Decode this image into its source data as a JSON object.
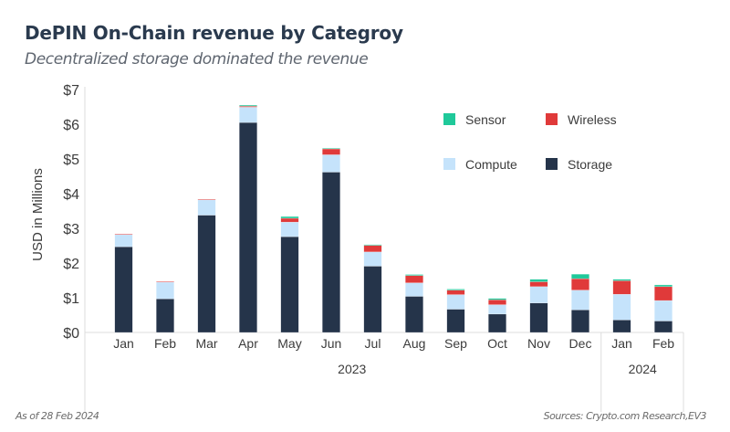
{
  "chart_data": {
    "type": "bar",
    "stacked": true,
    "title": "DePIN On-Chain revenue by Categroy",
    "subtitle": "Decentralized storage dominated the revenue",
    "xlabel": "",
    "ylabel": "USD in Millions",
    "ylim": [
      0,
      7
    ],
    "yticks": [
      "$0",
      "$1",
      "$2",
      "$3",
      "$4",
      "$5",
      "$6",
      "$7"
    ],
    "grid": false,
    "legend_position": "top-right",
    "categories": [
      "Jan",
      "Feb",
      "Mar",
      "Apr",
      "May",
      "Jun",
      "Jul",
      "Aug",
      "Sep",
      "Oct",
      "Nov",
      "Dec",
      "Jan",
      "Feb"
    ],
    "groups": [
      {
        "label": "2023",
        "count": 12
      },
      {
        "label": "2024",
        "count": 2
      }
    ],
    "series": [
      {
        "name": "Storage",
        "color": "#25344a",
        "values": [
          2.47,
          0.97,
          3.38,
          6.05,
          2.76,
          4.62,
          1.91,
          1.04,
          0.67,
          0.53,
          0.85,
          0.65,
          0.36,
          0.33
        ]
      },
      {
        "name": "Compute",
        "color": "#c5e3fb",
        "values": [
          0.35,
          0.48,
          0.45,
          0.44,
          0.42,
          0.5,
          0.41,
          0.39,
          0.42,
          0.27,
          0.47,
          0.57,
          0.74,
          0.59
        ]
      },
      {
        "name": "Wireless",
        "color": "#e03a3a",
        "values": [
          0.02,
          0.02,
          0.01,
          0.03,
          0.11,
          0.17,
          0.19,
          0.21,
          0.13,
          0.14,
          0.14,
          0.33,
          0.39,
          0.4
        ]
      },
      {
        "name": "Sensor",
        "color": "#1fc99a",
        "values": [
          0.0,
          0.0,
          0.0,
          0.03,
          0.05,
          0.02,
          0.02,
          0.03,
          0.03,
          0.04,
          0.07,
          0.13,
          0.04,
          0.05
        ]
      }
    ],
    "legend_order": [
      "Sensor",
      "Wireless",
      "Compute",
      "Storage"
    ]
  },
  "footer": {
    "as_of": "As of 28 Feb 2024",
    "sources": "Sources: Crypto.com Research,EV3"
  }
}
